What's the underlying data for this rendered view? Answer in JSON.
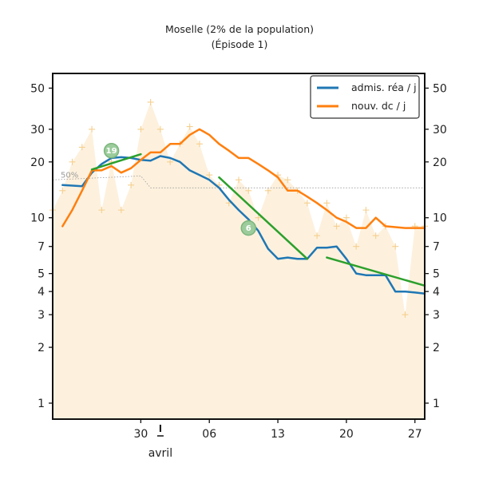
{
  "chart_data": {
    "type": "line",
    "title": "Moselle (2% de la population)",
    "subtitle": "(Épisode 1)",
    "xlabel": "",
    "ylabel": "",
    "y_scale": "log",
    "ylim": [
      0.82,
      60
    ],
    "xlim": [
      "2020-03-21",
      "2020-04-28"
    ],
    "y_ticks": [
      1,
      2,
      3,
      4,
      5,
      7,
      10,
      20,
      30,
      50
    ],
    "y_tick_labels": [
      "1",
      "2",
      "3",
      "4",
      "5",
      "7",
      "10",
      "20",
      "30",
      "50"
    ],
    "x_ticks": [
      "2020-03-30",
      "2020-04-06",
      "2020-04-13",
      "2020-04-20",
      "2020-04-27"
    ],
    "x_tick_labels": [
      "30",
      "06",
      "13",
      "20",
      "27"
    ],
    "month_marker": {
      "date": "2020-04-01",
      "label": "avril"
    },
    "legend": {
      "position": "top-right",
      "entries": [
        "admis. réa / j",
        "nouv. dc / j"
      ]
    },
    "colors": {
      "admissions": "#1f77b4",
      "deaths": "#ff7f0e",
      "trend": "#2ca02c",
      "fill": "#fdf1de",
      "daily_marker": "#f5cf8e",
      "median": "#999999"
    },
    "series": [
      {
        "name": "admis. réa / j",
        "x": [
          "2020-03-22",
          "2020-03-23",
          "2020-03-24",
          "2020-03-25",
          "2020-03-26",
          "2020-03-27",
          "2020-03-28",
          "2020-03-29",
          "2020-03-30",
          "2020-03-31",
          "2020-04-01",
          "2020-04-02",
          "2020-04-03",
          "2020-04-04",
          "2020-04-05",
          "2020-04-06",
          "2020-04-07",
          "2020-04-08",
          "2020-04-09",
          "2020-04-10",
          "2020-04-11",
          "2020-04-12",
          "2020-04-13",
          "2020-04-14",
          "2020-04-15",
          "2020-04-16",
          "2020-04-17",
          "2020-04-18",
          "2020-04-19",
          "2020-04-20",
          "2020-04-21",
          "2020-04-22",
          "2020-04-23",
          "2020-04-24",
          "2020-04-25",
          "2020-04-26",
          "2020-04-27",
          "2020-04-28"
        ],
        "values": [
          15,
          14.9,
          14.8,
          17.5,
          19.5,
          21,
          21.2,
          21,
          20.5,
          20.3,
          21.5,
          21,
          20,
          18,
          17,
          16,
          14.5,
          12.5,
          11,
          9.8,
          8.5,
          6.8,
          6.0,
          6.1,
          6.0,
          6.0,
          6.9,
          6.9,
          7.0,
          6.0,
          5.0,
          4.9,
          4.9,
          4.9,
          4.0,
          4.0,
          3.95,
          3.9
        ]
      },
      {
        "name": "nouv. dc / j",
        "x": [
          "2020-03-22",
          "2020-03-23",
          "2020-03-24",
          "2020-03-25",
          "2020-03-26",
          "2020-03-27",
          "2020-03-28",
          "2020-03-29",
          "2020-03-30",
          "2020-03-31",
          "2020-04-01",
          "2020-04-02",
          "2020-04-03",
          "2020-04-04",
          "2020-04-05",
          "2020-04-06",
          "2020-04-07",
          "2020-04-08",
          "2020-04-09",
          "2020-04-10",
          "2020-04-11",
          "2020-04-12",
          "2020-04-13",
          "2020-04-14",
          "2020-04-15",
          "2020-04-16",
          "2020-04-17",
          "2020-04-18",
          "2020-04-19",
          "2020-04-20",
          "2020-04-21",
          "2020-04-22",
          "2020-04-23",
          "2020-04-24",
          "2020-04-25",
          "2020-04-26",
          "2020-04-27",
          "2020-04-28"
        ],
        "values": [
          9,
          11,
          14,
          18,
          18,
          19,
          17.5,
          18.5,
          20.5,
          22.5,
          22.5,
          25,
          25,
          28,
          30,
          28,
          25,
          23,
          21,
          21,
          19.5,
          18,
          16.5,
          14,
          14,
          13,
          12,
          11,
          10,
          9.5,
          8.8,
          8.8,
          10,
          9,
          8.9,
          8.8,
          8.8,
          8.8
        ]
      }
    ],
    "daily_values": {
      "x": [
        "2020-03-21",
        "2020-03-22",
        "2020-03-23",
        "2020-03-24",
        "2020-03-25",
        "2020-03-26",
        "2020-03-27",
        "2020-03-28",
        "2020-03-29",
        "2020-03-30",
        "2020-03-31",
        "2020-04-01",
        "2020-04-02",
        "2020-04-03",
        "2020-04-04",
        "2020-04-05",
        "2020-04-06",
        "2020-04-07",
        "2020-04-08",
        "2020-04-09",
        "2020-04-10",
        "2020-04-11",
        "2020-04-12",
        "2020-04-13",
        "2020-04-14",
        "2020-04-15",
        "2020-04-16",
        "2020-04-17",
        "2020-04-18",
        "2020-04-19",
        "2020-04-20",
        "2020-04-21",
        "2020-04-22",
        "2020-04-23",
        "2020-04-24",
        "2020-04-25",
        "2020-04-26",
        "2020-04-27",
        "2020-04-28"
      ],
      "values": [
        11,
        14,
        20,
        24,
        30,
        11,
        20,
        11,
        15,
        30,
        42,
        30,
        20,
        25,
        31,
        25,
        17,
        15,
        12,
        16,
        14,
        10,
        14,
        17,
        16,
        14,
        12,
        8,
        12,
        9,
        10,
        7,
        11,
        8,
        9,
        7,
        3,
        9,
        9
      ]
    },
    "median_line": {
      "label": "50%",
      "x": [
        "2020-03-21",
        "2020-03-30",
        "2020-03-31",
        "2020-04-28"
      ],
      "values": [
        16,
        16.8,
        14.5,
        14.5
      ]
    },
    "trend_segments": [
      {
        "x": [
          "2020-03-25",
          "2020-03-30"
        ],
        "values": [
          18.2,
          22
        ]
      },
      {
        "x": [
          "2020-04-07",
          "2020-04-16"
        ],
        "values": [
          16.5,
          6
        ]
      },
      {
        "x": [
          "2020-04-18",
          "2020-04-28"
        ],
        "values": [
          6.1,
          4.3
        ]
      }
    ],
    "annotations": [
      {
        "label": "19",
        "x": "2020-03-27",
        "y": 23
      },
      {
        "label": "6",
        "x": "2020-04-10",
        "y": 8.8
      }
    ]
  }
}
